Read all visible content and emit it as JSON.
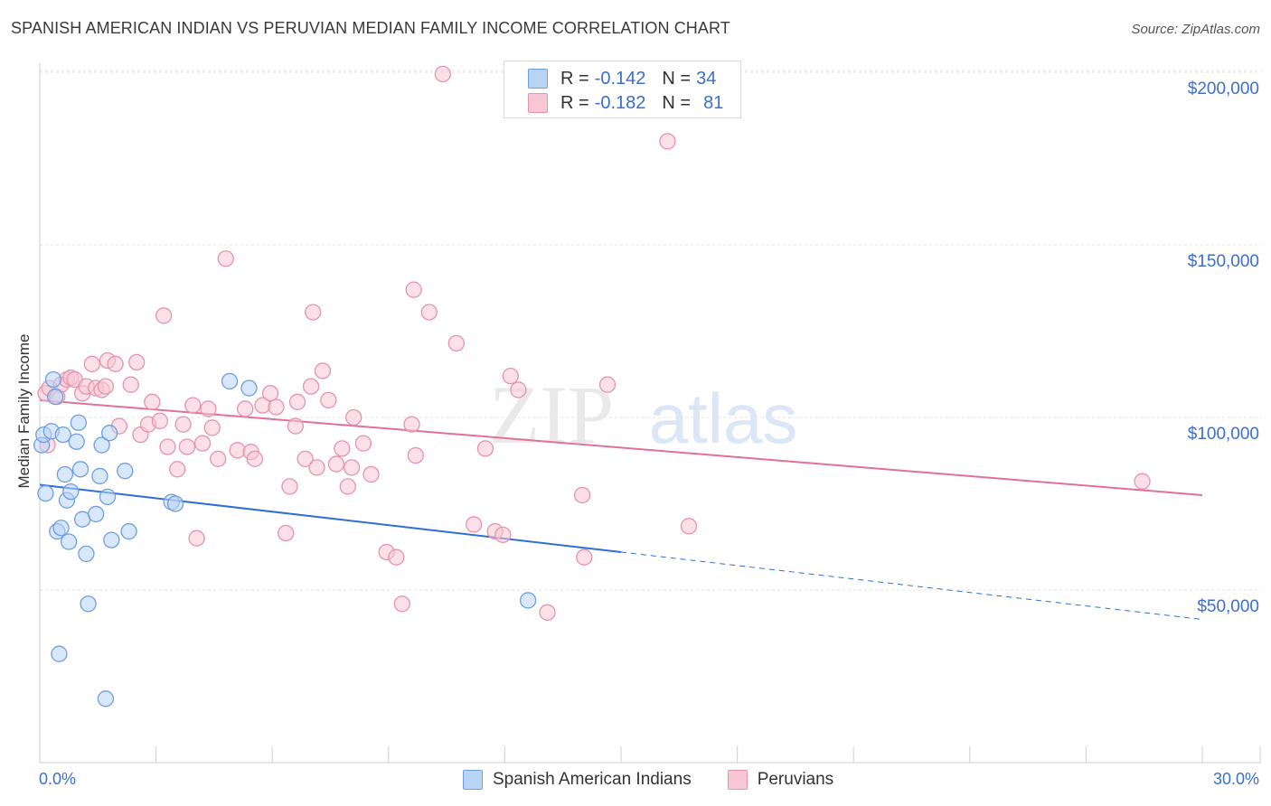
{
  "header": {
    "title": "SPANISH AMERICAN INDIAN VS PERUVIAN MEDIAN FAMILY INCOME CORRELATION CHART",
    "source": "Source: ZipAtlas.com"
  },
  "legend": {
    "rows": [
      {
        "r_label": "R =",
        "r_value": "-0.142",
        "n_label": "N =",
        "n_value": "34"
      },
      {
        "r_label": "R =",
        "r_value": "-0.182",
        "n_label": "N =",
        "n_value": "81"
      }
    ]
  },
  "bottom_legend": [
    "Spanish American Indians",
    "Peruvians"
  ],
  "colors": {
    "spanish_fill": "#b9d3f5",
    "spanish_stroke": "#6d9fe0",
    "spanish_line": "#2f6fd1",
    "peruvian_fill": "#f8c6d4",
    "peruvian_stroke": "#e693ac",
    "peruvian_line": "#e0719a",
    "tick_text": "#3a6fd0"
  },
  "chart_data": {
    "type": "scatter",
    "title": "SPANISH AMERICAN INDIAN VS PERUVIAN MEDIAN FAMILY INCOME CORRELATION CHART",
    "xlabel": "",
    "ylabel": "Median Family Income",
    "xlim": [
      0,
      30
    ],
    "ylim": [
      0,
      210000
    ],
    "x_tick_labels": [
      "0.0%",
      "30.0%"
    ],
    "y_ticks": [
      50000,
      100000,
      150000,
      200000
    ],
    "y_tick_labels": [
      "$50,000",
      "$100,000",
      "$150,000",
      "$200,000"
    ],
    "grid": true,
    "legend_position": "top-center",
    "series": [
      {
        "name": "Spanish American Indians",
        "r": -0.142,
        "n": 34,
        "trend": {
          "x0": 0,
          "y0": 80500,
          "x1": 15,
          "y1": 61000,
          "dashed_to_x": 30,
          "dashed_to_y": 41500
        },
        "points": [
          [
            0.05,
            92000
          ],
          [
            0.1,
            95000
          ],
          [
            0.15,
            78000
          ],
          [
            0.3,
            96000
          ],
          [
            0.35,
            111000
          ],
          [
            0.4,
            106000
          ],
          [
            0.45,
            67000
          ],
          [
            0.5,
            31500
          ],
          [
            0.55,
            68000
          ],
          [
            0.6,
            95000
          ],
          [
            0.65,
            83500
          ],
          [
            0.7,
            76000
          ],
          [
            0.75,
            64000
          ],
          [
            0.8,
            78500
          ],
          [
            0.95,
            93000
          ],
          [
            1.0,
            98500
          ],
          [
            1.05,
            85000
          ],
          [
            1.1,
            70500
          ],
          [
            1.2,
            60500
          ],
          [
            1.25,
            46000
          ],
          [
            1.45,
            72000
          ],
          [
            1.55,
            83000
          ],
          [
            1.6,
            92000
          ],
          [
            1.7,
            18500
          ],
          [
            1.75,
            77000
          ],
          [
            1.8,
            95500
          ],
          [
            1.85,
            64500
          ],
          [
            2.2,
            84500
          ],
          [
            2.3,
            67000
          ],
          [
            3.4,
            75500
          ],
          [
            3.5,
            75000
          ],
          [
            4.9,
            110500
          ],
          [
            5.4,
            108500
          ],
          [
            12.6,
            47000
          ]
        ]
      },
      {
        "name": "Peruvians",
        "r": -0.182,
        "n": 81,
        "trend": {
          "x0": 0,
          "y0": 105000,
          "x1": 30,
          "y1": 77500
        },
        "points": [
          [
            0.15,
            107000
          ],
          [
            0.25,
            108500
          ],
          [
            0.45,
            106000
          ],
          [
            0.55,
            109500
          ],
          [
            0.7,
            111000
          ],
          [
            0.8,
            111500
          ],
          [
            0.9,
            111000
          ],
          [
            1.1,
            107000
          ],
          [
            1.2,
            109000
          ],
          [
            1.35,
            115500
          ],
          [
            1.45,
            108500
          ],
          [
            1.6,
            108000
          ],
          [
            1.7,
            109000
          ],
          [
            1.75,
            116500
          ],
          [
            1.95,
            115500
          ],
          [
            2.05,
            97500
          ],
          [
            2.35,
            109500
          ],
          [
            2.5,
            116000
          ],
          [
            2.6,
            95000
          ],
          [
            2.8,
            98000
          ],
          [
            2.9,
            104500
          ],
          [
            3.1,
            99000
          ],
          [
            3.2,
            129500
          ],
          [
            3.3,
            91500
          ],
          [
            3.55,
            85000
          ],
          [
            3.7,
            98000
          ],
          [
            3.8,
            91500
          ],
          [
            3.95,
            103500
          ],
          [
            4.05,
            65000
          ],
          [
            4.2,
            92500
          ],
          [
            4.35,
            102500
          ],
          [
            4.45,
            97000
          ],
          [
            4.6,
            88000
          ],
          [
            4.8,
            146000
          ],
          [
            5.1,
            90500
          ],
          [
            5.3,
            102500
          ],
          [
            5.45,
            90000
          ],
          [
            5.55,
            88000
          ],
          [
            5.75,
            103500
          ],
          [
            5.95,
            107000
          ],
          [
            6.1,
            103000
          ],
          [
            6.35,
            66500
          ],
          [
            6.45,
            80000
          ],
          [
            6.6,
            97500
          ],
          [
            6.65,
            104500
          ],
          [
            6.85,
            88000
          ],
          [
            7.0,
            109000
          ],
          [
            7.05,
            130500
          ],
          [
            7.15,
            85500
          ],
          [
            7.3,
            113500
          ],
          [
            7.45,
            105000
          ],
          [
            7.65,
            86500
          ],
          [
            7.8,
            91000
          ],
          [
            7.95,
            80000
          ],
          [
            8.05,
            85500
          ],
          [
            8.1,
            100000
          ],
          [
            8.35,
            92500
          ],
          [
            8.55,
            83500
          ],
          [
            8.95,
            61000
          ],
          [
            9.2,
            59500
          ],
          [
            9.35,
            46000
          ],
          [
            9.6,
            98000
          ],
          [
            9.7,
            89000
          ],
          [
            9.65,
            137000
          ],
          [
            10.05,
            130500
          ],
          [
            10.4,
            199500
          ],
          [
            10.75,
            121500
          ],
          [
            11.2,
            69000
          ],
          [
            11.5,
            91000
          ],
          [
            11.75,
            67000
          ],
          [
            11.95,
            66000
          ],
          [
            12.15,
            112000
          ],
          [
            12.35,
            108000
          ],
          [
            13.1,
            43500
          ],
          [
            14.0,
            77500
          ],
          [
            14.05,
            59500
          ],
          [
            14.65,
            109500
          ],
          [
            16.2,
            180000
          ],
          [
            16.75,
            68500
          ],
          [
            28.45,
            81500
          ],
          [
            0.2,
            92000
          ]
        ]
      }
    ]
  },
  "watermark": {
    "part1": "ZIP",
    "part2": "atlas"
  }
}
